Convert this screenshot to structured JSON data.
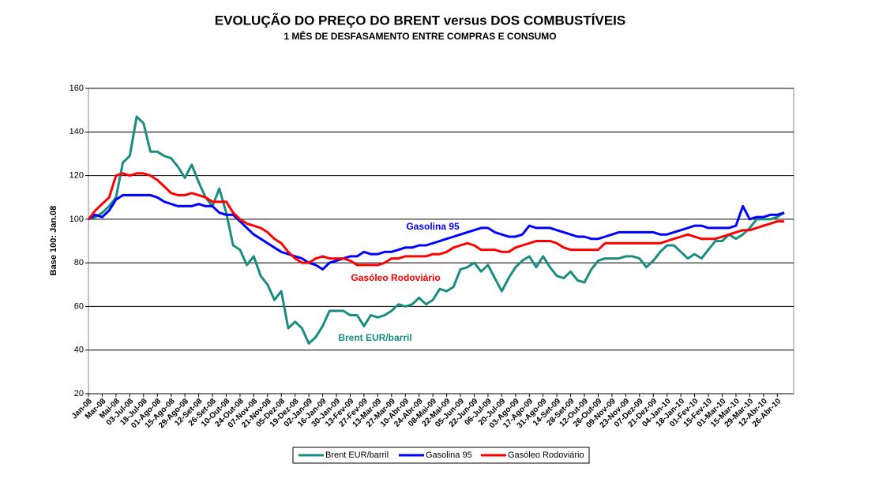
{
  "chart_data": {
    "type": "line",
    "title": "EVOLUÇÃO DO PREÇO DO BRENT versus DOS COMBUSTÍVEIS",
    "subtitle": "1 MÊS DE DESFASAMENTO ENTRE COMPRAS E CONSUMO",
    "y_label": "Base 100: Jan.08",
    "ylim": [
      20,
      160
    ],
    "yticks": [
      20,
      40,
      60,
      80,
      100,
      120,
      140,
      160
    ],
    "grid": true,
    "legend": "bottom",
    "categories": [
      "Jan-08",
      null,
      "Mar-08",
      null,
      "Mai-08",
      null,
      "03-Jul-08",
      null,
      "18-Jul-08",
      null,
      "01-Ago-08",
      null,
      "15-Ago-08",
      null,
      "29-Ago-08",
      null,
      "12-Set-08",
      null,
      "26-Set-08",
      null,
      "10-Out-08",
      null,
      "24-Out-08",
      null,
      "07-Nov-08",
      null,
      "21-Nov-08",
      null,
      "05-Dez-08",
      null,
      "19-Dez-08",
      null,
      "02-Jan-09",
      null,
      "16-Jan-09",
      null,
      "30-Jan-09",
      null,
      "13-Fev-09",
      null,
      "27-Fev-09",
      null,
      "13-Mar-09",
      null,
      "27-Mar-09",
      null,
      "10-Abr-09",
      null,
      "24-Abr-09",
      null,
      "08-Mai-09",
      null,
      "22-Mai-09",
      null,
      "05-Jun-09",
      null,
      "22-Jun-09",
      null,
      "06-Jul-09",
      null,
      "20-Jul-09",
      null,
      "03-Ago-09",
      null,
      "17-Ago-09",
      null,
      "31-Ago-09",
      null,
      "14-Set-09",
      null,
      "28-Set-09",
      null,
      "12-Out-09",
      null,
      "26-Out-09",
      null,
      "09-Nov-09",
      null,
      "23-Nov-09",
      null,
      "07-Dez-09",
      null,
      "21-Dez-09",
      null,
      "04-Jan-10",
      null,
      "18-Jan-10",
      null,
      "01-Fev-10",
      null,
      "15-Fev-10",
      null,
      "01-Mar-10",
      null,
      "15-Mar-10",
      null,
      "29-Mar-10",
      null,
      "12-Abr-10",
      null,
      "26-Abr-10",
      null
    ],
    "series": [
      {
        "name": "Brent EUR/barril",
        "color": "#1a8c80",
        "values": [
          100,
          101,
          103,
          106,
          110,
          126,
          129,
          147,
          144,
          131,
          131,
          129,
          128,
          124,
          119,
          125,
          117,
          110,
          106,
          114,
          103,
          88,
          86,
          79,
          83,
          74,
          70,
          63,
          67,
          50,
          53,
          50,
          43,
          46,
          51,
          58,
          58,
          58,
          56,
          56,
          51,
          56,
          55,
          56,
          58,
          61,
          60,
          61,
          64,
          61,
          63,
          68,
          67,
          69,
          77,
          78,
          80,
          76,
          79,
          73,
          67,
          73,
          78,
          81,
          83,
          78,
          83,
          78,
          74,
          73,
          76,
          72,
          71,
          77,
          81,
          82,
          82,
          82,
          83,
          83,
          82,
          78,
          81,
          85,
          88,
          88,
          85,
          82,
          84,
          82,
          86,
          90,
          90,
          93,
          91,
          93,
          96,
          100,
          100,
          100,
          101,
          103
        ]
      },
      {
        "name": "Gasolina 95",
        "color": "#0000ff",
        "values": [
          100,
          102,
          101,
          104,
          109,
          111,
          111,
          111,
          111,
          111,
          110,
          108,
          107,
          106,
          106,
          106,
          107,
          106,
          106,
          103,
          102,
          102,
          99,
          96,
          93,
          91,
          89,
          87,
          85,
          84,
          83,
          82,
          80,
          79,
          77,
          80,
          81,
          82,
          83,
          83,
          85,
          84,
          84,
          85,
          85,
          86,
          87,
          87,
          88,
          88,
          89,
          90,
          91,
          92,
          93,
          94,
          95,
          96,
          96,
          94,
          93,
          92,
          92,
          93,
          97,
          96,
          96,
          96,
          95,
          94,
          93,
          92,
          92,
          91,
          91,
          92,
          93,
          94,
          94,
          94,
          94,
          94,
          94,
          93,
          93,
          94,
          95,
          96,
          97,
          97,
          96,
          96,
          96,
          96,
          97,
          106,
          100,
          101,
          101,
          102,
          102,
          103
        ]
      },
      {
        "name": "Gasóleo Rodoviário",
        "color": "#ff0000",
        "values": [
          100,
          104,
          107,
          110,
          120,
          121,
          120,
          121,
          121,
          120,
          118,
          115,
          112,
          111,
          111,
          112,
          111,
          110,
          108,
          108,
          108,
          103,
          100,
          98,
          97,
          96,
          94,
          91,
          89,
          85,
          82,
          80,
          80,
          82,
          83,
          82,
          82,
          82,
          81,
          79,
          79,
          79,
          79,
          80,
          82,
          82,
          83,
          83,
          83,
          83,
          84,
          84,
          85,
          87,
          88,
          89,
          88,
          86,
          86,
          86,
          85,
          85,
          87,
          88,
          89,
          90,
          90,
          90,
          89,
          87,
          86,
          86,
          86,
          86,
          86,
          89,
          89,
          89,
          89,
          89,
          89,
          89,
          89,
          89,
          90,
          91,
          92,
          93,
          92,
          91,
          91,
          91,
          92,
          93,
          94,
          95,
          95,
          96,
          97,
          98,
          99,
          99
        ]
      }
    ],
    "annotations": [
      "Gasolina 95",
      "Gasóleo Rodoviário",
      "Brent EUR/barril"
    ]
  }
}
